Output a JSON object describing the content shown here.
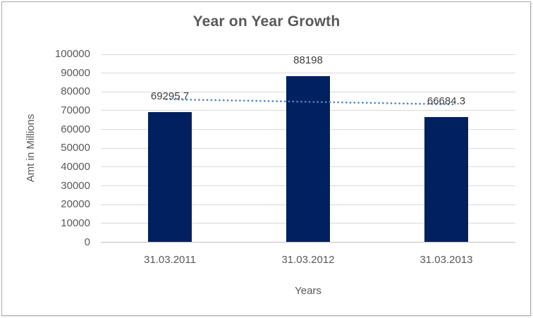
{
  "chart_data": {
    "type": "bar",
    "title": "Year on Year Growth",
    "ylabel": "Amt in Millions",
    "xlabel": "Years",
    "categories": [
      "31.03.2011",
      "31.03.2012",
      "31.03.2013"
    ],
    "values": [
      69295.7,
      88198,
      66684.3
    ],
    "data_labels": [
      "69295.7",
      "88198",
      "66684.3"
    ],
    "ylim": [
      0,
      100000
    ],
    "ytick_step": 10000,
    "ytick_labels": [
      "0",
      "10000",
      "20000",
      "30000",
      "40000",
      "50000",
      "60000",
      "70000",
      "80000",
      "90000",
      "100000"
    ],
    "grid": true,
    "legend": "none",
    "bar_color": "#002060",
    "trendline": {
      "type": "linear",
      "style": "dotted",
      "color": "#4f86c6"
    }
  },
  "colors": {
    "text": "#595959",
    "data_label_text": "#3f3f3f",
    "gridline": "#d9d9d9",
    "axis_line": "#bfbfbf",
    "frame_border": "#ababab",
    "background": "#ffffff"
  }
}
